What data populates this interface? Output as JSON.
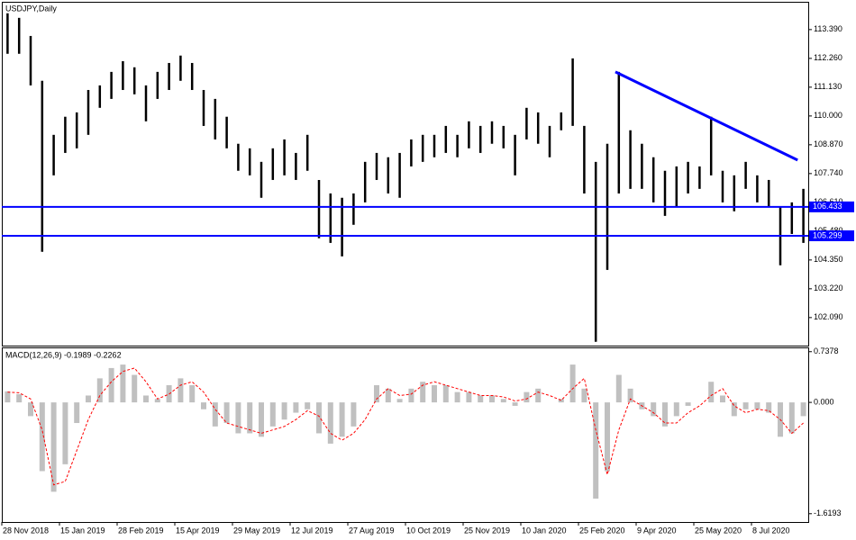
{
  "chart_data": [
    {
      "type": "ohlc",
      "title": "USDJPY,Daily",
      "categories": [
        "28 Nov 2018",
        null,
        null,
        null,
        null,
        "15 Jan 2019",
        null,
        null,
        null,
        null,
        "28 Feb 2019",
        null,
        null,
        null,
        null,
        "15 Apr 2019",
        null,
        null,
        null,
        null,
        "29 May 2019",
        null,
        null,
        null,
        null,
        "12 Jul 2019",
        null,
        null,
        null,
        null,
        "27 Aug 2019",
        null,
        null,
        null,
        null,
        "10 Oct 2019",
        null,
        null,
        null,
        null,
        "25 Nov 2019",
        null,
        null,
        null,
        null,
        "10 Jan 2020",
        null,
        null,
        null,
        null,
        "25 Feb 2020",
        null,
        null,
        null,
        null,
        "9 Apr 2020",
        null,
        null,
        null,
        null,
        "25 May 2020",
        null,
        null,
        null,
        null,
        "8 Jul 2020",
        null,
        null,
        null,
        null
      ],
      "high": [
        114.03,
        113.85,
        113.14,
        111.38,
        109.26,
        109.97,
        110.14,
        111.02,
        111.2,
        111.73,
        112.15,
        111.91,
        111.2,
        111.73,
        112.08,
        112.37,
        112.08,
        111.02,
        110.67,
        109.97,
        108.91,
        108.73,
        108.2,
        108.73,
        109.08,
        108.55,
        109.26,
        107.49,
        106.96,
        106.79,
        106.96,
        108.2,
        108.55,
        108.38,
        108.55,
        109.08,
        109.26,
        109.26,
        109.61,
        109.26,
        109.79,
        109.61,
        109.79,
        109.61,
        109.26,
        110.32,
        110.14,
        109.61,
        110.14,
        112.26,
        109.61,
        108.2,
        108.91,
        111.73,
        109.44,
        108.91,
        108.38,
        107.85,
        108.02,
        108.2,
        108.02,
        109.97,
        107.85,
        107.67,
        108.2,
        107.67,
        107.49,
        106.43,
        106.61,
        107.14
      ],
      "low": [
        112.44,
        112.44,
        111.2,
        104.67,
        107.67,
        108.55,
        108.73,
        109.26,
        110.32,
        110.67,
        111.02,
        110.85,
        109.79,
        110.67,
        111.02,
        111.38,
        111.02,
        109.61,
        109.08,
        108.73,
        107.85,
        107.67,
        106.79,
        107.49,
        107.67,
        107.49,
        107.85,
        105.2,
        105.02,
        104.49,
        105.73,
        106.61,
        107.49,
        106.96,
        106.79,
        108.02,
        108.2,
        108.38,
        108.55,
        108.38,
        108.73,
        108.55,
        108.91,
        108.73,
        107.67,
        109.08,
        108.91,
        108.38,
        109.44,
        109.61,
        106.96,
        101.14,
        103.96,
        106.96,
        107.14,
        107.14,
        106.61,
        106.08,
        106.43,
        106.96,
        107.14,
        107.67,
        106.61,
        106.26,
        107.14,
        106.61,
        106.43,
        104.14,
        105.37,
        105.02
      ],
      "color": "#000000",
      "ylim": [
        100.99,
        114.48
      ],
      "yticks": [
        {
          "value": 113.39,
          "label": "113.390"
        },
        {
          "value": 112.26,
          "label": "112.260"
        },
        {
          "value": 111.13,
          "label": "111.130"
        },
        {
          "value": 110,
          "label": "110.000"
        },
        {
          "value": 108.87,
          "label": "108.870"
        },
        {
          "value": 107.74,
          "label": "107.740"
        },
        {
          "value": 106.61,
          "label": "106.610"
        },
        {
          "value": 105.48,
          "label": "105.480"
        },
        {
          "value": 104.35,
          "label": "104.350"
        },
        {
          "value": 103.22,
          "label": "103.220"
        },
        {
          "value": 102.09,
          "label": "102.090"
        }
      ],
      "levels": [
        106.433,
        105.299
      ],
      "level_color": "#0000ff",
      "trendline": {
        "x": [
          52.7,
          68.5
        ],
        "y": [
          111.73,
          108.27
        ],
        "color": "#0000ff"
      }
    },
    {
      "type": "macd",
      "title": "MACD(12,26,9) -0.1989 -0.2262",
      "series": [
        {
          "color": "#c0c0c0",
          "values": [
            0.16,
            0.12,
            -0.2,
            -1.0,
            -1.3,
            -0.9,
            -0.3,
            0.1,
            0.35,
            0.5,
            0.55,
            0.4,
            0.1,
            0.05,
            0.25,
            0.35,
            0.25,
            -0.1,
            -0.35,
            -0.3,
            -0.45,
            -0.45,
            -0.5,
            -0.35,
            -0.25,
            -0.15,
            -0.1,
            -0.45,
            -0.6,
            -0.5,
            -0.35,
            0.0,
            0.25,
            0.2,
            0.05,
            0.2,
            0.3,
            0.25,
            0.25,
            0.15,
            0.15,
            0.1,
            0.1,
            0.05,
            -0.05,
            0.15,
            0.2,
            0.0,
            0.05,
            0.55,
            0.2,
            -1.4,
            -1.0,
            0.4,
            0.2,
            -0.1,
            -0.2,
            -0.35,
            -0.2,
            -0.05,
            0.0,
            0.3,
            0.1,
            -0.2,
            -0.1,
            -0.1,
            -0.15,
            -0.5,
            -0.45,
            -0.2
          ]
        },
        {
          "color": "#ff0000",
          "values": [
            0.15,
            0.14,
            0.05,
            -0.4,
            -1.2,
            -1.15,
            -0.7,
            -0.25,
            0.1,
            0.3,
            0.45,
            0.5,
            0.3,
            0.05,
            0.12,
            0.25,
            0.3,
            0.15,
            -0.1,
            -0.3,
            -0.35,
            -0.4,
            -0.45,
            -0.4,
            -0.35,
            -0.25,
            -0.12,
            -0.2,
            -0.45,
            -0.55,
            -0.45,
            -0.25,
            0.05,
            0.2,
            0.1,
            0.12,
            0.25,
            0.3,
            0.25,
            0.2,
            0.15,
            0.1,
            0.1,
            0.08,
            0.02,
            0.05,
            0.15,
            0.1,
            0.03,
            0.2,
            0.35,
            -0.4,
            -1.05,
            -0.4,
            0.05,
            -0.05,
            -0.15,
            -0.3,
            -0.3,
            -0.15,
            -0.05,
            0.1,
            0.2,
            -0.05,
            -0.15,
            -0.1,
            -0.12,
            -0.25,
            -0.45,
            -0.3
          ]
        }
      ],
      "ylim": [
        -1.74,
        0.8
      ],
      "yticks": [
        0.7378,
        {
          "value": 0,
          "label": "0.000"
        },
        -1.6193
      ]
    }
  ]
}
